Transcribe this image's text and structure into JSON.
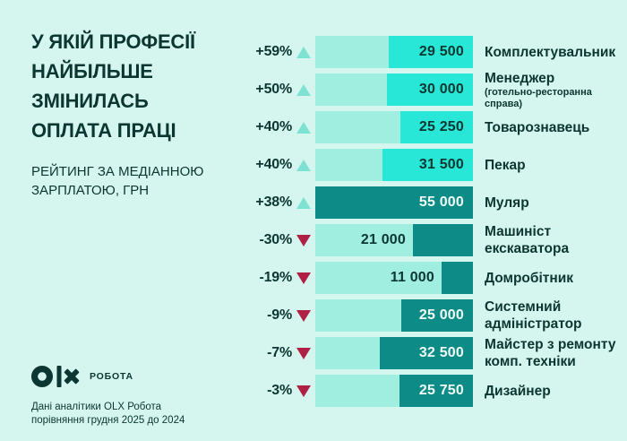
{
  "title": {
    "lines": [
      "У ЯКІЙ ПРОФЕСІЇ",
      "НАЙБІЛЬШЕ",
      "ЗМІНИЛАСЬ",
      "ОПЛАТА ПРАЦІ"
    ]
  },
  "subtitle": "РЕЙТИНГ ЗА МЕДІАННОЮ ЗАРПЛАТОЮ, ГРН",
  "logo": {
    "brand": "OLX",
    "suffix": "РОБОТА"
  },
  "footer": {
    "lines": [
      "Дані аналітики OLX Робота",
      "порівняння грудня 2025 до 2024"
    ]
  },
  "palette": {
    "background": "#D5F6EE",
    "ink": "#0B3632",
    "track": "#A0EEE0",
    "segment_bright": "#29E7D6",
    "segment_dark": "#0D8C87",
    "value_on_dark": "#F2FCF9",
    "arrow_up": "#7EE2D2",
    "arrow_down": "#B01F44"
  },
  "chart_data": {
    "type": "bar",
    "orientation": "horizontal",
    "title": "У якій професії найбільше змінилась оплата праці",
    "subtitle": "Рейтинг за медіанною зарплатою, грн",
    "unit": "грн",
    "value_axis_max": 55000,
    "rows": [
      {
        "label": "Комплектувальник",
        "sublabel": "",
        "percent": "+59%",
        "direction": "up",
        "value": 29500,
        "value_label": "29 500",
        "segment_style": "bright"
      },
      {
        "label": "Менеджер",
        "sublabel": "(готельно-ресторанна справа)",
        "percent": "+50%",
        "direction": "up",
        "value": 30000,
        "value_label": "30 000",
        "segment_style": "bright"
      },
      {
        "label": "Товарознавець",
        "sublabel": "",
        "percent": "+40%",
        "direction": "up",
        "value": 25250,
        "value_label": "25 250",
        "segment_style": "bright"
      },
      {
        "label": "Пекар",
        "sublabel": "",
        "percent": "+40%",
        "direction": "up",
        "value": 31500,
        "value_label": "31 500",
        "segment_style": "bright"
      },
      {
        "label": "Муляр",
        "sublabel": "",
        "percent": "+38%",
        "direction": "up",
        "value": 55000,
        "value_label": "55 000",
        "segment_style": "dark"
      },
      {
        "label": "Машиніст екскаватора",
        "sublabel": "",
        "percent": "-30%",
        "direction": "down",
        "value": 21000,
        "value_label": "21 000",
        "segment_style": "dark"
      },
      {
        "label": "Домробітник",
        "sublabel": "",
        "percent": "-19%",
        "direction": "down",
        "value": 11000,
        "value_label": "11 000",
        "segment_style": "dark"
      },
      {
        "label": "Системний адміністратор",
        "sublabel": "",
        "percent": "-9%",
        "direction": "down",
        "value": 25000,
        "value_label": "25 000",
        "segment_style": "dark"
      },
      {
        "label": "Майстер з ремонту комп. техніки",
        "sublabel": "",
        "percent": "-7%",
        "direction": "down",
        "value": 32500,
        "value_label": "32 500",
        "segment_style": "dark"
      },
      {
        "label": "Дизайнер",
        "sublabel": "",
        "percent": "-3%",
        "direction": "down",
        "value": 25750,
        "value_label": "25 750",
        "segment_style": "dark"
      }
    ]
  }
}
